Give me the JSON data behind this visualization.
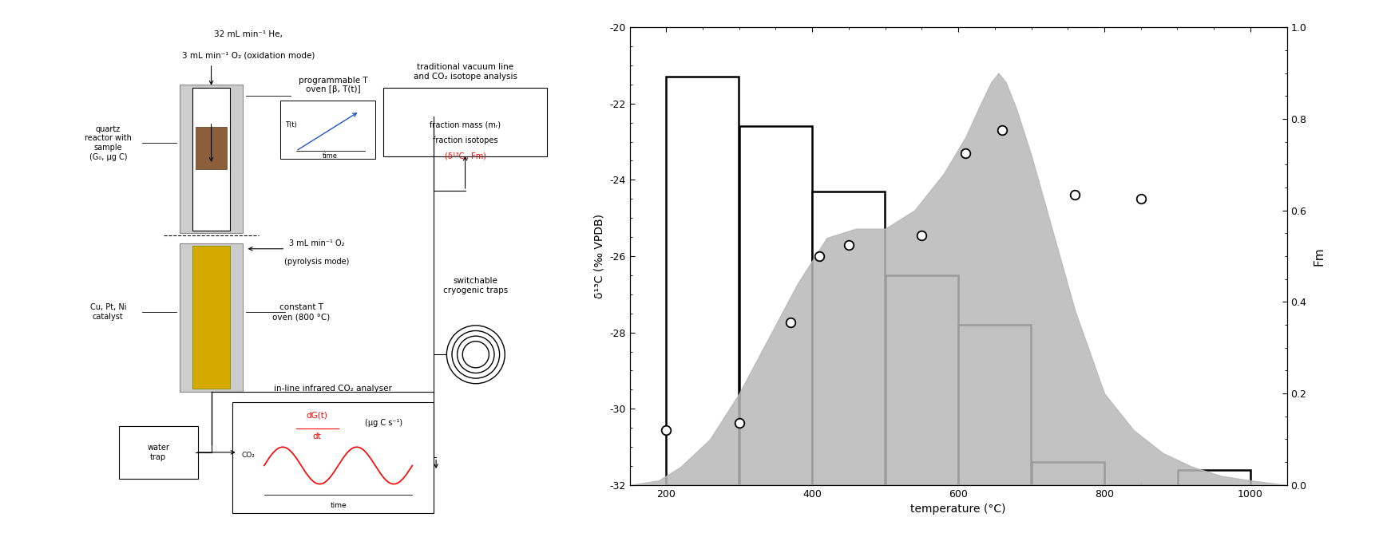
{
  "bar_edges": [
    200,
    300,
    400,
    500,
    600,
    700,
    800,
    900,
    1000
  ],
  "bar_tops": [
    -21.3,
    -22.6,
    -24.3,
    -26.5,
    -27.8,
    -31.4,
    -32.0,
    -31.6
  ],
  "bar_bottom": -32.0,
  "circle_temps": [
    200,
    300,
    370,
    410,
    450,
    550,
    610,
    660,
    760,
    850
  ],
  "circle_fm": [
    0.12,
    0.135,
    0.355,
    0.5,
    0.525,
    0.545,
    0.725,
    0.775,
    0.635,
    0.625
  ],
  "shade_x": [
    150,
    190,
    220,
    260,
    300,
    340,
    380,
    420,
    460,
    500,
    540,
    580,
    610,
    630,
    645,
    655,
    665,
    680,
    700,
    730,
    760,
    800,
    840,
    880,
    920,
    960,
    1000,
    1050
  ],
  "shade_y": [
    0.0,
    0.01,
    0.04,
    0.1,
    0.2,
    0.32,
    0.44,
    0.54,
    0.56,
    0.56,
    0.6,
    0.68,
    0.76,
    0.83,
    0.88,
    0.9,
    0.88,
    0.82,
    0.72,
    0.55,
    0.38,
    0.2,
    0.12,
    0.07,
    0.04,
    0.02,
    0.01,
    0.0
  ],
  "ylim_left": [
    -32,
    -20
  ],
  "ylim_right": [
    0.0,
    1.0
  ],
  "xlim": [
    150,
    1050
  ],
  "xlabel": "temperature (°C)",
  "ylabel_left": "δ¹³C (‰ VPDB)",
  "ylabel_right": "Fm",
  "xticks": [
    200,
    400,
    600,
    800,
    1000
  ],
  "yticks_left": [
    -32,
    -30,
    -28,
    -26,
    -24,
    -22,
    -20
  ],
  "yticks_right": [
    0.0,
    0.2,
    0.4,
    0.6,
    0.8,
    1.0
  ],
  "bar_color": "white",
  "bar_edgecolor": "black",
  "bar_linewidth": 1.8,
  "shade_color": "#b8b8b8",
  "shade_alpha": 0.85,
  "circle_facecolor": "white",
  "circle_edgecolor": "black",
  "circle_size": 70,
  "circle_linewidth": 1.3,
  "fig_width": 17.33,
  "fig_height": 6.83,
  "dpi": 100,
  "bg_color": "white"
}
